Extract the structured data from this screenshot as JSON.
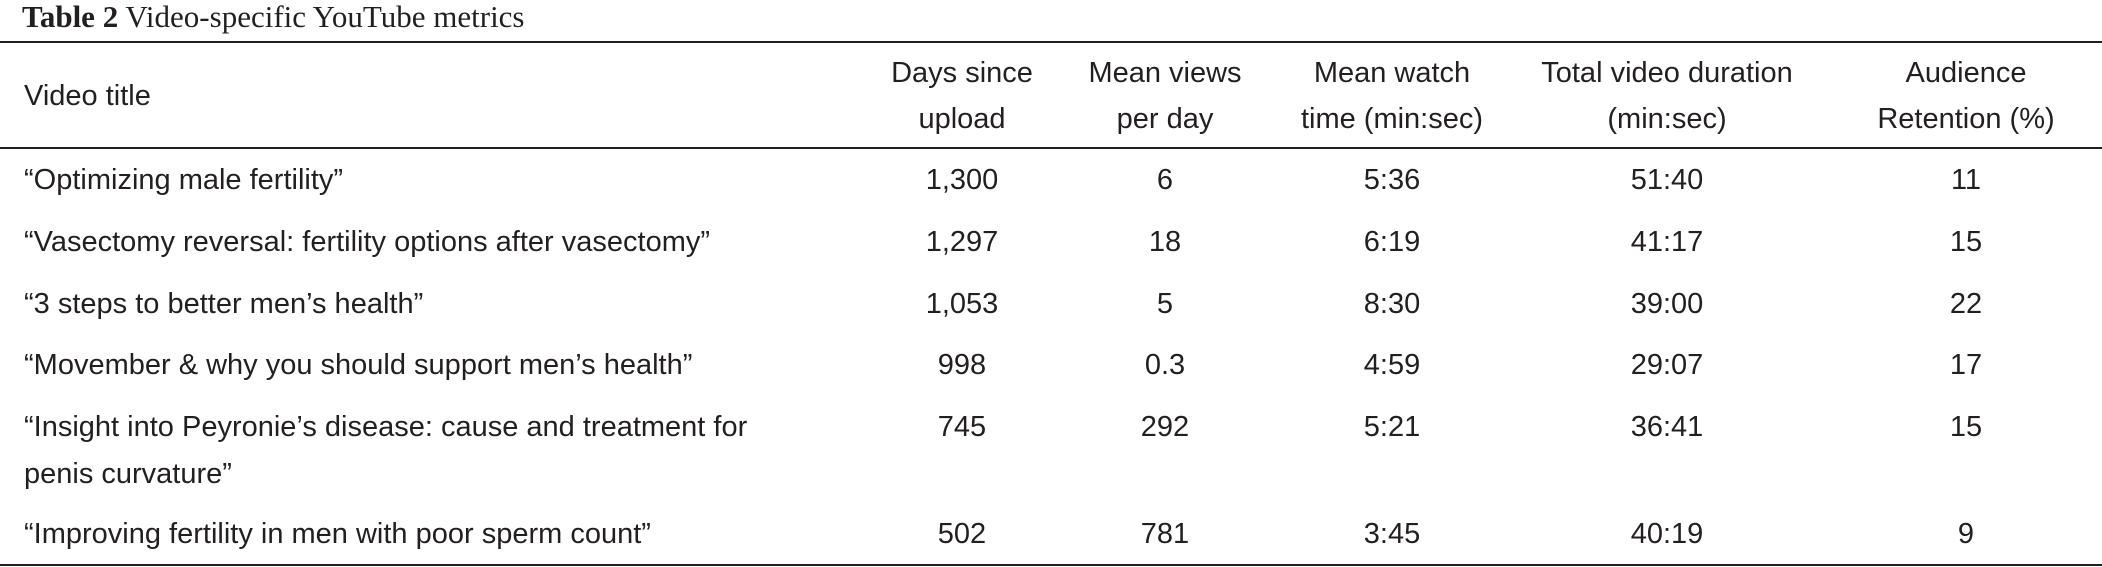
{
  "caption": {
    "label": "Table 2",
    "title": "Video-specific YouTube metrics"
  },
  "columns": [
    "Video title",
    "Days since upload",
    "Mean views per day",
    "Mean watch time (min:sec)",
    "Total video duration (min:sec)",
    "Audience Retention (%)"
  ],
  "columns_lines": [
    [
      "Video title"
    ],
    [
      "Days since",
      "upload"
    ],
    [
      "Mean views",
      "per day"
    ],
    [
      "Mean watch",
      "time (min:sec)"
    ],
    [
      "Total video duration",
      "(min:sec)"
    ],
    [
      "Audience",
      "Retention (%)"
    ]
  ],
  "rows": [
    [
      "“Optimizing male fertility”",
      "1,300",
      "6",
      "5:36",
      "51:40",
      "11"
    ],
    [
      "“Vasectomy reversal: fertility options after vasectomy”",
      "1,297",
      "18",
      "6:19",
      "41:17",
      "15"
    ],
    [
      "“3 steps to better men’s health”",
      "1,053",
      "5",
      "8:30",
      "39:00",
      "22"
    ],
    [
      "“Movember & why you should support men’s health”",
      "998",
      "0.3",
      "4:59",
      "29:07",
      "17"
    ],
    [
      "“Insight into Peyronie’s disease: cause and treatment for penis curvature”",
      "745",
      "292",
      "5:21",
      "36:41",
      "15"
    ],
    [
      "“Improving fertility in men with poor sperm count”",
      "502",
      "781",
      "3:45",
      "40:19",
      "9"
    ]
  ],
  "row5_title_lines": [
    "“Insight into Peyronie’s disease: cause and treatment for",
    "penis curvature”"
  ]
}
